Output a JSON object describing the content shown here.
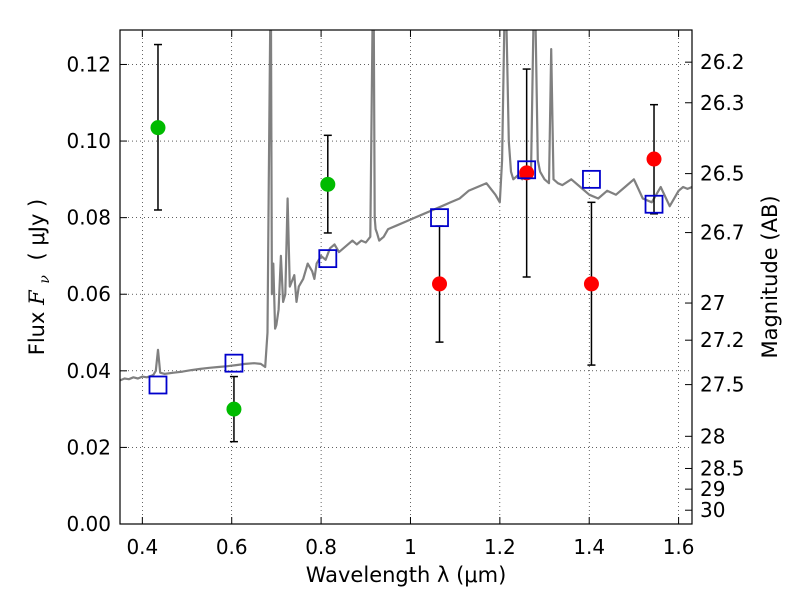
{
  "chart_data": {
    "type": "scatter",
    "title": "",
    "xlabel": "Wavelength  λ (μm)",
    "ylabel": "Flux  F_ν  ( μJy )",
    "ylabel_parts": {
      "prefix": "Flux ",
      "symbol": "F",
      "subscript": "ν",
      "unit": "( μJy )"
    },
    "y2label": "Magnitude (AB)",
    "xlim": [
      0.35,
      1.63
    ],
    "ylim": [
      0.0,
      0.129
    ],
    "grid": true,
    "x_ticks": [
      0.4,
      0.6,
      0.8,
      1.0,
      1.2,
      1.4,
      1.6
    ],
    "x_tick_labels": [
      "0.4",
      "0.6",
      "0.8",
      "1",
      "1.2",
      "1.4",
      "1.6"
    ],
    "y_ticks": [
      0.0,
      0.02,
      0.04,
      0.06,
      0.08,
      0.1,
      0.12
    ],
    "y_tick_labels": [
      "0.00",
      "0.02",
      "0.04",
      "0.06",
      "0.08",
      "0.10",
      "0.12"
    ],
    "y2_ticks": [
      {
        "label": "26.2",
        "flux": 0.1206
      },
      {
        "label": "26.3",
        "flux": 0.11
      },
      {
        "label": "26.5",
        "flux": 0.0915
      },
      {
        "label": "26.7",
        "flux": 0.0761
      },
      {
        "label": "27",
        "flux": 0.0577
      },
      {
        "label": "27.2",
        "flux": 0.048
      },
      {
        "label": "27.5",
        "flux": 0.0364
      },
      {
        "label": "28",
        "flux": 0.0229
      },
      {
        "label": "28.5",
        "flux": 0.0145
      },
      {
        "label": "29",
        "flux": 0.0091
      },
      {
        "label": "30",
        "flux": 0.0036
      }
    ],
    "series": [
      {
        "marker": "circle",
        "color": "#00bb00",
        "points": [
          {
            "x": 0.435,
            "y": 0.1035,
            "err_low": 0.082,
            "err_high": 0.1252
          },
          {
            "x": 0.605,
            "y": 0.03,
            "err_low": 0.0215,
            "err_high": 0.0385
          },
          {
            "x": 0.815,
            "y": 0.0887,
            "err_low": 0.076,
            "err_high": 0.1015
          }
        ]
      },
      {
        "marker": "circle",
        "color": "#ff0000",
        "points": [
          {
            "x": 1.065,
            "y": 0.0627,
            "err_low": 0.0475,
            "err_high": 0.0778
          },
          {
            "x": 1.26,
            "y": 0.0917,
            "err_low": 0.0645,
            "err_high": 0.1188
          },
          {
            "x": 1.405,
            "y": 0.0627,
            "err_low": 0.0415,
            "err_high": 0.084
          },
          {
            "x": 1.545,
            "y": 0.0953,
            "err_low": 0.081,
            "err_high": 0.1095
          }
        ]
      },
      {
        "marker": "open-square",
        "color": "#0000cc",
        "points": [
          {
            "x": 0.435,
            "y": 0.0363
          },
          {
            "x": 0.605,
            "y": 0.042
          },
          {
            "x": 0.815,
            "y": 0.0693
          },
          {
            "x": 1.065,
            "y": 0.08
          },
          {
            "x": 1.26,
            "y": 0.0925
          },
          {
            "x": 1.405,
            "y": 0.09
          },
          {
            "x": 1.545,
            "y": 0.0835
          }
        ]
      },
      {
        "type": "line",
        "color": "#808080",
        "x": [
          0.35,
          0.36,
          0.37,
          0.38,
          0.39,
          0.4,
          0.41,
          0.42,
          0.425,
          0.43,
          0.435,
          0.44,
          0.45,
          0.47,
          0.49,
          0.51,
          0.53,
          0.55,
          0.57,
          0.59,
          0.61,
          0.63,
          0.65,
          0.665,
          0.675,
          0.68,
          0.683,
          0.686,
          0.688,
          0.69,
          0.693,
          0.697,
          0.7,
          0.705,
          0.71,
          0.715,
          0.72,
          0.725,
          0.73,
          0.74,
          0.745,
          0.75,
          0.76,
          0.77,
          0.78,
          0.785,
          0.79,
          0.8,
          0.81,
          0.82,
          0.83,
          0.84,
          0.85,
          0.86,
          0.87,
          0.88,
          0.89,
          0.9,
          0.91,
          0.915,
          0.918,
          0.92,
          0.922,
          0.925,
          0.93,
          0.94,
          0.95,
          0.97,
          0.99,
          1.01,
          1.03,
          1.05,
          1.07,
          1.09,
          1.11,
          1.13,
          1.15,
          1.17,
          1.19,
          1.2,
          1.205,
          1.21,
          1.215,
          1.22,
          1.225,
          1.23,
          1.24,
          1.25,
          1.26,
          1.27,
          1.275,
          1.28,
          1.285,
          1.29,
          1.3,
          1.31,
          1.315,
          1.32,
          1.33,
          1.34,
          1.36,
          1.38,
          1.4,
          1.42,
          1.44,
          1.46,
          1.48,
          1.5,
          1.52,
          1.54,
          1.56,
          1.58,
          1.6,
          1.61,
          1.62,
          1.63
        ],
        "y": [
          0.0375,
          0.038,
          0.0378,
          0.0383,
          0.038,
          0.0385,
          0.0383,
          0.0387,
          0.039,
          0.04,
          0.0455,
          0.0395,
          0.0392,
          0.0395,
          0.0398,
          0.0402,
          0.0405,
          0.0408,
          0.041,
          0.0412,
          0.0415,
          0.0418,
          0.042,
          0.0418,
          0.041,
          0.05,
          0.09,
          0.13,
          0.13,
          0.06,
          0.068,
          0.051,
          0.052,
          0.056,
          0.07,
          0.058,
          0.06,
          0.085,
          0.062,
          0.065,
          0.058,
          0.062,
          0.064,
          0.068,
          0.066,
          0.064,
          0.068,
          0.07,
          0.069,
          0.072,
          0.073,
          0.071,
          0.072,
          0.073,
          0.074,
          0.073,
          0.074,
          0.0735,
          0.075,
          0.13,
          0.13,
          0.08,
          0.077,
          0.076,
          0.074,
          0.075,
          0.077,
          0.078,
          0.079,
          0.08,
          0.081,
          0.082,
          0.083,
          0.084,
          0.085,
          0.087,
          0.088,
          0.089,
          0.086,
          0.084,
          0.095,
          0.13,
          0.13,
          0.1,
          0.092,
          0.09,
          0.091,
          0.09,
          0.092,
          0.093,
          0.13,
          0.13,
          0.095,
          0.092,
          0.09,
          0.089,
          0.124,
          0.09,
          0.089,
          0.0885,
          0.09,
          0.088,
          0.086,
          0.085,
          0.087,
          0.086,
          0.088,
          0.09,
          0.085,
          0.084,
          0.088,
          0.083,
          0.087,
          0.088,
          0.0875,
          0.088
        ]
      }
    ]
  }
}
